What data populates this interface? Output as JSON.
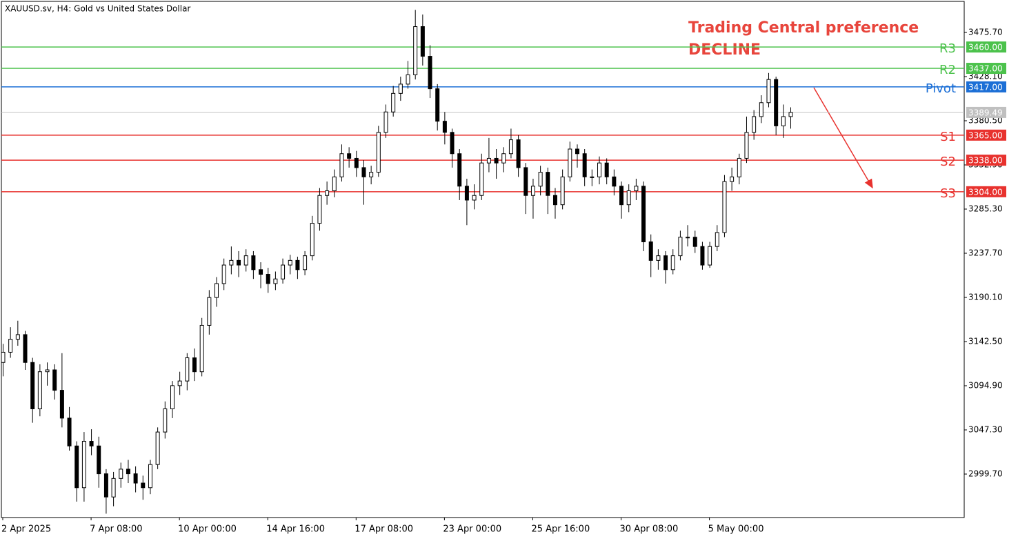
{
  "chart_data": {
    "type": "candlestick",
    "title": "XAUUSD.sv, H4:  Gold vs United States Dollar",
    "annotations": [
      "Trading Central preference",
      "DECLINE"
    ],
    "categories": [
      "2 Apr 2025",
      null,
      null,
      null,
      null,
      null,
      null,
      null,
      null,
      null,
      null,
      null,
      "7 Apr 08:00",
      null,
      null,
      null,
      null,
      null,
      null,
      null,
      null,
      null,
      null,
      null,
      "10 Apr 00:00",
      null,
      null,
      null,
      null,
      null,
      null,
      null,
      null,
      null,
      null,
      null,
      "14 Apr 16:00",
      null,
      null,
      null,
      null,
      null,
      null,
      null,
      null,
      null,
      null,
      null,
      "17 Apr 08:00",
      null,
      null,
      null,
      null,
      null,
      null,
      null,
      null,
      null,
      null,
      null,
      "23 Apr 00:00",
      null,
      null,
      null,
      null,
      null,
      null,
      null,
      null,
      null,
      null,
      null,
      "25 Apr 16:00",
      null,
      null,
      null,
      null,
      null,
      null,
      null,
      null,
      null,
      null,
      null,
      "30 Apr 08:00",
      null,
      null,
      null,
      null,
      null,
      null,
      null,
      null,
      null,
      null,
      null,
      "5 May 00:00",
      null,
      null,
      null,
      null,
      null,
      null,
      null,
      null,
      null,
      null,
      null
    ],
    "ohlc": [
      [
        3120,
        3140,
        3105,
        3131
      ],
      [
        3131,
        3158,
        3125,
        3145
      ],
      [
        3145,
        3165,
        3138,
        3150
      ],
      [
        3150,
        3154,
        3112,
        3120
      ],
      [
        3120,
        3125,
        3055,
        3070
      ],
      [
        3070,
        3118,
        3062,
        3110
      ],
      [
        3110,
        3120,
        3095,
        3112
      ],
      [
        3112,
        3118,
        3080,
        3090
      ],
      [
        3090,
        3130,
        3050,
        3060
      ],
      [
        3060,
        3072,
        3025,
        3030
      ],
      [
        3030,
        3035,
        2970,
        2985
      ],
      [
        2985,
        3045,
        2970,
        3035
      ],
      [
        3035,
        3048,
        3020,
        3030
      ],
      [
        3030,
        3040,
        2985,
        3000
      ],
      [
        3000,
        3005,
        2957,
        2975
      ],
      [
        2975,
        3002,
        2965,
        2995
      ],
      [
        2995,
        3012,
        2985,
        3005
      ],
      [
        3005,
        3015,
        2990,
        3000
      ],
      [
        3000,
        3008,
        2980,
        2990
      ],
      [
        2990,
        2998,
        2972,
        2985
      ],
      [
        2985,
        3015,
        2978,
        3010
      ],
      [
        3010,
        3050,
        3005,
        3045
      ],
      [
        3045,
        3078,
        3038,
        3070
      ],
      [
        3070,
        3100,
        3060,
        3095
      ],
      [
        3095,
        3110,
        3085,
        3100
      ],
      [
        3100,
        3130,
        3090,
        3125
      ],
      [
        3125,
        3135,
        3100,
        3110
      ],
      [
        3110,
        3168,
        3105,
        3160
      ],
      [
        3160,
        3198,
        3150,
        3190
      ],
      [
        3190,
        3212,
        3180,
        3205
      ],
      [
        3205,
        3232,
        3198,
        3225
      ],
      [
        3225,
        3245,
        3215,
        3230
      ],
      [
        3230,
        3240,
        3212,
        3225
      ],
      [
        3225,
        3242,
        3218,
        3235
      ],
      [
        3235,
        3240,
        3210,
        3220
      ],
      [
        3220,
        3228,
        3200,
        3215
      ],
      [
        3215,
        3222,
        3195,
        3205
      ],
      [
        3205,
        3218,
        3198,
        3210
      ],
      [
        3210,
        3232,
        3205,
        3225
      ],
      [
        3225,
        3236,
        3215,
        3230
      ],
      [
        3230,
        3234,
        3210,
        3220
      ],
      [
        3220,
        3240,
        3214,
        3235
      ],
      [
        3235,
        3278,
        3230,
        3270
      ],
      [
        3270,
        3308,
        3262,
        3300
      ],
      [
        3300,
        3315,
        3290,
        3305
      ],
      [
        3305,
        3328,
        3298,
        3320
      ],
      [
        3320,
        3355,
        3315,
        3345
      ],
      [
        3345,
        3352,
        3330,
        3340
      ],
      [
        3340,
        3348,
        3320,
        3330
      ],
      [
        3330,
        3338,
        3290,
        3320
      ],
      [
        3320,
        3332,
        3312,
        3325
      ],
      [
        3325,
        3375,
        3320,
        3368
      ],
      [
        3368,
        3398,
        3362,
        3390
      ],
      [
        3390,
        3418,
        3385,
        3410
      ],
      [
        3410,
        3428,
        3402,
        3420
      ],
      [
        3420,
        3445,
        3415,
        3430
      ],
      [
        3430,
        3500,
        3425,
        3482
      ],
      [
        3482,
        3495,
        3440,
        3450
      ],
      [
        3450,
        3462,
        3405,
        3415
      ],
      [
        3415,
        3420,
        3370,
        3380
      ],
      [
        3380,
        3390,
        3355,
        3368
      ],
      [
        3368,
        3372,
        3330,
        3345
      ],
      [
        3345,
        3350,
        3295,
        3310
      ],
      [
        3310,
        3318,
        3268,
        3295
      ],
      [
        3295,
        3312,
        3285,
        3300
      ],
      [
        3300,
        3345,
        3295,
        3335
      ],
      [
        3335,
        3362,
        3325,
        3340
      ],
      [
        3340,
        3350,
        3318,
        3335
      ],
      [
        3335,
        3352,
        3325,
        3345
      ],
      [
        3345,
        3372,
        3340,
        3360
      ],
      [
        3360,
        3365,
        3320,
        3330
      ],
      [
        3330,
        3335,
        3280,
        3300
      ],
      [
        3300,
        3318,
        3275,
        3310
      ],
      [
        3310,
        3332,
        3300,
        3325
      ],
      [
        3325,
        3330,
        3280,
        3300
      ],
      [
        3300,
        3308,
        3275,
        3290
      ],
      [
        3290,
        3328,
        3285,
        3320
      ],
      [
        3320,
        3358,
        3315,
        3350
      ],
      [
        3350,
        3355,
        3330,
        3345
      ],
      [
        3345,
        3350,
        3310,
        3320
      ],
      [
        3320,
        3328,
        3310,
        3320
      ],
      [
        3320,
        3342,
        3312,
        3335
      ],
      [
        3335,
        3340,
        3312,
        3320
      ],
      [
        3320,
        3328,
        3300,
        3310
      ],
      [
        3310,
        3315,
        3275,
        3290
      ],
      [
        3290,
        3312,
        3282,
        3305
      ],
      [
        3305,
        3318,
        3295,
        3310
      ],
      [
        3310,
        3315,
        3240,
        3250
      ],
      [
        3250,
        3258,
        3212,
        3230
      ],
      [
        3230,
        3242,
        3220,
        3235
      ],
      [
        3235,
        3240,
        3205,
        3220
      ],
      [
        3220,
        3242,
        3215,
        3235
      ],
      [
        3235,
        3262,
        3230,
        3255
      ],
      [
        3255,
        3268,
        3245,
        3255
      ],
      [
        3255,
        3262,
        3238,
        3245
      ],
      [
        3245,
        3250,
        3220,
        3225
      ],
      [
        3225,
        3250,
        3222,
        3245
      ],
      [
        3245,
        3268,
        3240,
        3260
      ],
      [
        3260,
        3322,
        3255,
        3315
      ],
      [
        3315,
        3330,
        3305,
        3320
      ],
      [
        3320,
        3345,
        3312,
        3340
      ],
      [
        3340,
        3385,
        3335,
        3368
      ],
      [
        3368,
        3392,
        3360,
        3385
      ],
      [
        3385,
        3408,
        3378,
        3400
      ],
      [
        3400,
        3432,
        3395,
        3425
      ],
      [
        3425,
        3428,
        3365,
        3375
      ],
      [
        3375,
        3398,
        3362,
        3385
      ],
      [
        3385,
        3395,
        3372,
        3389.49
      ]
    ],
    "ylim": [
      2952.84,
      3509.17
    ],
    "yticks": [
      {
        "value": 2999.7,
        "label": "2999.70"
      },
      {
        "value": 3047.3,
        "label": "3047.30"
      },
      {
        "value": 3094.9,
        "label": "3094.90"
      },
      {
        "value": 3142.5,
        "label": "3142.50"
      },
      {
        "value": 3190.1,
        "label": "3190.10"
      },
      {
        "value": 3237.7,
        "label": "3237.70"
      },
      {
        "value": 3285.3,
        "label": "3285.30"
      },
      {
        "value": 3332.9,
        "label": "3332.90"
      },
      {
        "value": 3380.5,
        "label": "3380.50"
      },
      {
        "value": 3428.1,
        "label": "3428.10"
      },
      {
        "value": 3475.7,
        "label": "3475.70"
      }
    ],
    "levels": [
      {
        "name": "R3",
        "value": 3460,
        "label": "3460.00",
        "color": "#4cc24c"
      },
      {
        "name": "R2",
        "value": 3437,
        "label": "3437.00",
        "color": "#4cc24c"
      },
      {
        "name": "Pivot",
        "value": 3417,
        "label": "3417.00",
        "color": "#1c6fd6"
      },
      {
        "name": "S1",
        "value": 3365,
        "label": "3365.00",
        "color": "#e8322e"
      },
      {
        "name": "S2",
        "value": 3338,
        "label": "3338.00",
        "color": "#e8322e"
      },
      {
        "name": "S3",
        "value": 3304,
        "label": "3304.00",
        "color": "#e8322e"
      }
    ],
    "current_price": 3389.49,
    "current_color": "#c0c0c0",
    "up_color": "#ffffff",
    "down_color": "#000000",
    "annotation_color": "#e8453c"
  }
}
